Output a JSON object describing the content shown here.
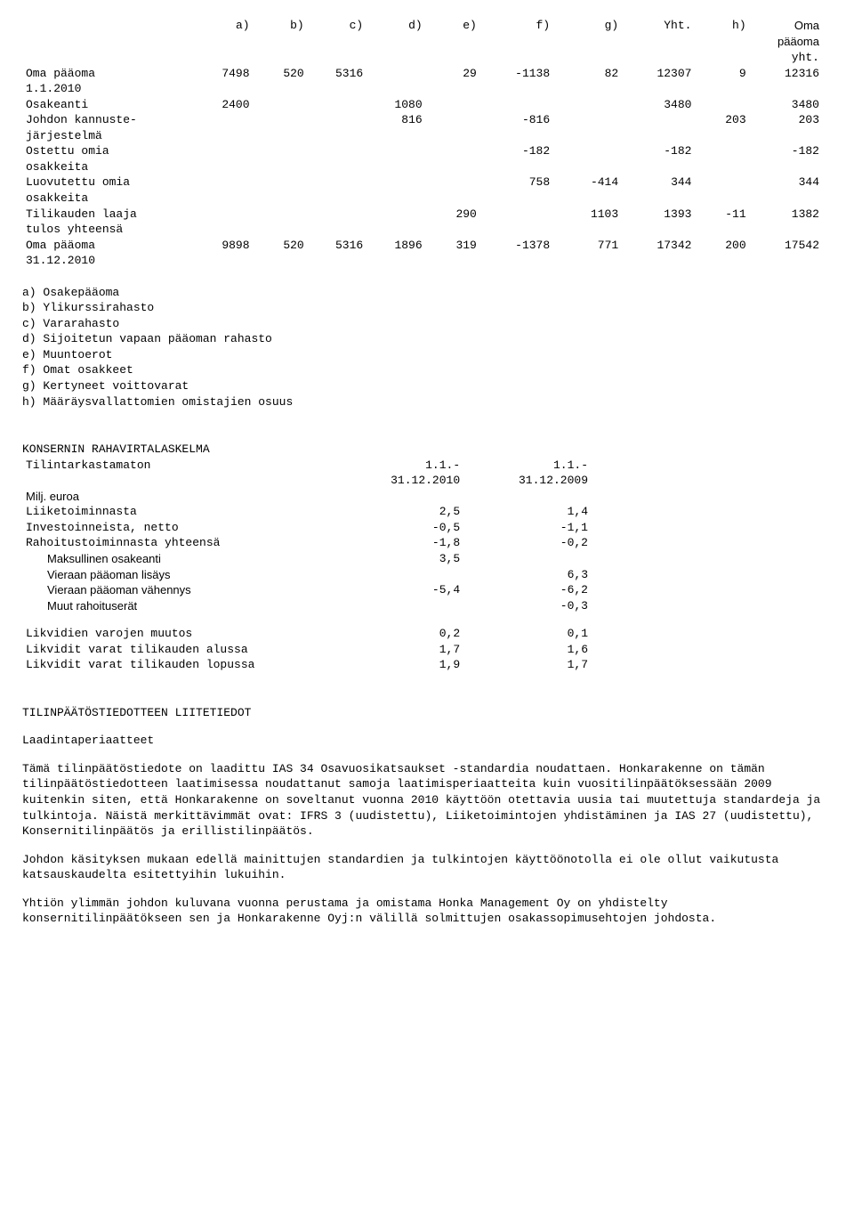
{
  "equity_table": {
    "header_top": "Oma\npääoma",
    "cols": [
      "a)",
      "b)",
      "c)",
      "d)",
      "e)",
      "f)",
      "g)",
      "Yht.",
      "h)",
      "yht."
    ],
    "rows": [
      {
        "label": "Oma pääoma\n1.1.2010",
        "v": [
          "7498",
          "520",
          "5316",
          "",
          "29",
          "-1138",
          "82",
          "12307",
          "9",
          "12316"
        ]
      },
      {
        "label": "Osakeanti",
        "v": [
          "2400",
          "",
          "",
          "1080",
          "",
          "",
          "",
          "3480",
          "",
          "3480"
        ]
      },
      {
        "label": "Johdon kannuste-\njärjestelmä",
        "v": [
          "",
          "",
          "",
          "816",
          "",
          "-816",
          "",
          "",
          "203",
          "203"
        ]
      },
      {
        "label": "Ostettu omia\nosakkeita",
        "v": [
          "",
          "",
          "",
          "",
          "",
          "-182",
          "",
          "-182",
          "",
          "-182"
        ]
      },
      {
        "label": "Luovutettu omia\nosakkeita",
        "v": [
          "",
          "",
          "",
          "",
          "",
          "758",
          "-414",
          "344",
          "",
          "344"
        ]
      },
      {
        "label": "Tilikauden laaja\ntulos yhteensä",
        "v": [
          "",
          "",
          "",
          "",
          "290",
          "",
          "1103",
          "1393",
          "-11",
          "1382"
        ]
      },
      {
        "label": "Oma pääoma\n31.12.2010",
        "v": [
          "9898",
          "520",
          "5316",
          "1896",
          "319",
          "-1378",
          "771",
          "17342",
          "200",
          "17542"
        ]
      }
    ]
  },
  "legend": [
    "a) Osakepääoma",
    "b) Ylikurssirahasto",
    "c) Vararahasto",
    "d) Sijoitetun vapaan pääoman rahasto",
    "e) Muuntoerot",
    "f) Omat osakkeet",
    "g) Kertyneet voittovarat",
    "h) Määräysvallattomien omistajien osuus"
  ],
  "cashflow": {
    "title": "KONSERNIN RAHAVIRTALASKELMA",
    "subhead_label": "Tilintarkastamaton",
    "col1": "1.1.-\n31.12.2010",
    "col2": "1.1.-\n31.12.2009",
    "unit": "Milj. euroa",
    "rows": [
      {
        "label": "Liiketoiminnasta",
        "a": "2,5",
        "b": "1,4"
      },
      {
        "label": "Investoinneista, netto",
        "a": "-0,5",
        "b": "-1,1"
      },
      {
        "label": "Rahoitustoiminnasta yhteensä",
        "a": "-1,8",
        "b": "-0,2"
      },
      {
        "label": "Maksullinen osakeanti",
        "a": "3,5",
        "b": "",
        "indent": true
      },
      {
        "label": "Vieraan pääoman lisäys",
        "a": "",
        "b": "6,3",
        "indent": true
      },
      {
        "label": "Vieraan pääoman vähennys",
        "a": "-5,4",
        "b": "-6,2",
        "indent": true
      },
      {
        "label": "Muut rahoituserät",
        "a": "",
        "b": "-0,3",
        "indent": true
      }
    ],
    "rows2": [
      {
        "label": "Likvidien varojen muutos",
        "a": "0,2",
        "b": "0,1"
      },
      {
        "label": "Likvidit varat tilikauden alussa",
        "a": "1,7",
        "b": "1,6"
      },
      {
        "label": "Likvidit varat tilikauden lopussa",
        "a": "1,9",
        "b": "1,7"
      }
    ]
  },
  "notes": {
    "title": "TILINPÄÄTÖSTIEDOTTEEN LIITETIEDOT",
    "subtitle": "Laadintaperiaatteet",
    "p1": "Tämä tilinpäätöstiedote on laadittu IAS 34 Osavuosikatsaukset -standardia noudattaen. Honkarakenne on tämän tilinpäätöstiedotteen laatimisessa noudattanut samoja laatimisperiaatteita kuin vuositilinpäätöksessään 2009 kuitenkin siten, että Honkarakenne on soveltanut vuonna 2010 käyttöön otettavia uusia tai muutettuja standardeja ja tulkintoja. Näistä merkittävimmät ovat: IFRS 3 (uudistettu), Liiketoimintojen yhdistäminen ja IAS 27 (uudistettu), Konsernitilinpäätös ja erillistilinpäätös.",
    "p2": "Johdon käsityksen mukaan edellä mainittujen standardien ja tulkintojen käyttöönotolla ei ole ollut vaikutusta katsauskaudelta esitettyihin lukuihin.",
    "p3": "Yhtiön ylimmän johdon kuluvana vuonna perustama ja omistama Honka Management Oy on yhdistelty konsernitilinpäätökseen sen ja Honkarakenne Oyj:n välillä solmittujen osakassopimusehtojen johdosta."
  }
}
